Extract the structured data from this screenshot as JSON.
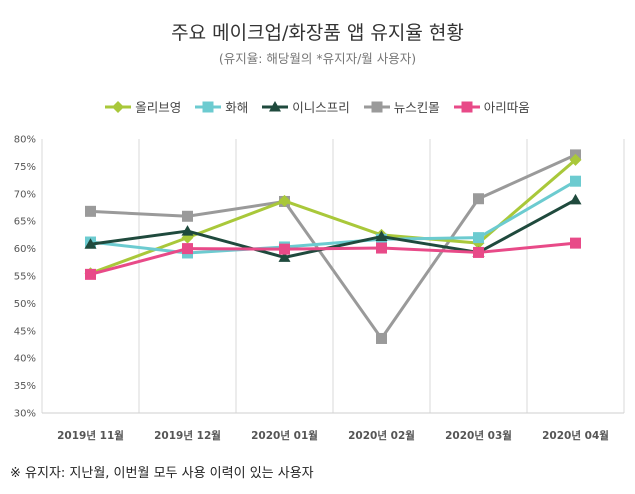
{
  "header": {
    "title": "주요 메이크업/화장품 앱 유지율 현황",
    "subtitle": "(유지율: 해당월의 *유지자/월 사용자)"
  },
  "footnote": "※ 유지자: 지난월, 이번월 모두 사용 이력이 있는 사용자",
  "chart_data": {
    "type": "line",
    "title": "주요 메이크업/화장품 앱 유지율 현황",
    "subtitle": "(유지율: 해당월의 *유지자/월 사용자)",
    "xlabel": "",
    "ylabel": "",
    "categories": [
      "2019년 11월",
      "2019년 12월",
      "2020년 01월",
      "2020년 02월",
      "2020년 03월",
      "2020년 04월"
    ],
    "y_ticks": [
      "30%",
      "35%",
      "40%",
      "45%",
      "50%",
      "55%",
      "60%",
      "65%",
      "70%",
      "75%",
      "80%"
    ],
    "ylim": [
      30,
      80
    ],
    "grid": "vertical",
    "legend_position": "top",
    "series": [
      {
        "name": "올리브영",
        "color": "#a9c83a",
        "marker": "diamond",
        "values": [
          55.5,
          62,
          68.7,
          62.5,
          61,
          76.2
        ]
      },
      {
        "name": "화해",
        "color": "#6ccbd0",
        "marker": "square",
        "values": [
          61.2,
          59.2,
          60.3,
          61.7,
          62,
          72.3
        ]
      },
      {
        "name": "이니스프리",
        "color": "#1f4a3d",
        "marker": "triangle",
        "values": [
          60.8,
          63.2,
          58.4,
          62.2,
          59.3,
          68.9
        ]
      },
      {
        "name": "뉴스킨몰",
        "color": "#9a9a9a",
        "marker": "square",
        "values": [
          66.8,
          65.9,
          68.6,
          43.6,
          69.1,
          77.1
        ]
      },
      {
        "name": "아리따움",
        "color": "#e84a88",
        "marker": "square",
        "values": [
          55.3,
          60,
          59.9,
          60.1,
          59.3,
          61
        ]
      }
    ]
  }
}
